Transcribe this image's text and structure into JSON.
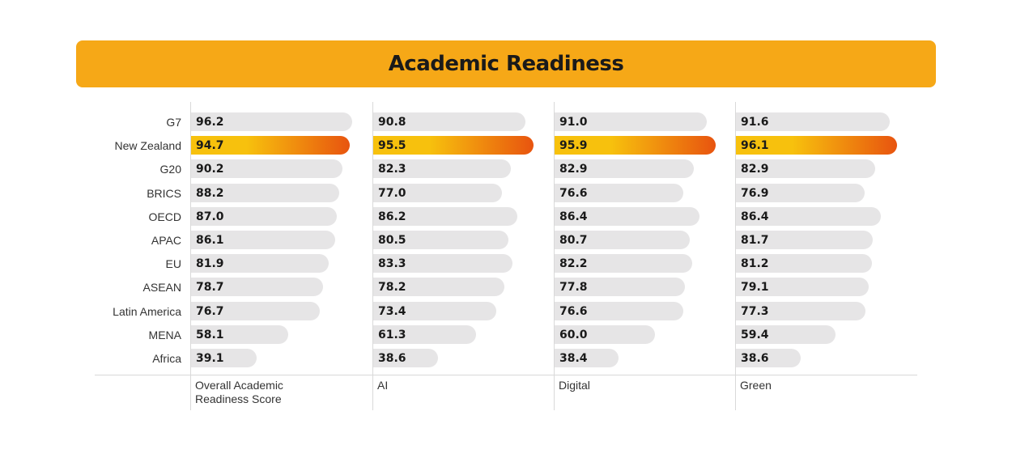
{
  "header": {
    "title": "Academic Readiness"
  },
  "colors": {
    "banner": "#F6A817",
    "bar": "#E6E5E6",
    "highlight_start": "#F7C10D",
    "highlight_end": "#E8540F"
  },
  "chart_data": {
    "type": "bar",
    "orientation": "horizontal",
    "title": "Academic Readiness",
    "categories": [
      "G7",
      "New Zealand",
      "G20",
      "BRICS",
      "OECD",
      "APAC",
      "EU",
      "ASEAN",
      "Latin America",
      "MENA",
      "Africa"
    ],
    "highlight_category": "New Zealand",
    "xlim": [
      0,
      100
    ],
    "series": [
      {
        "name": "Overall Academic Readiness Score",
        "values": [
          96.2,
          94.7,
          90.2,
          88.2,
          87.0,
          86.1,
          81.9,
          78.7,
          76.7,
          58.1,
          39.1
        ]
      },
      {
        "name": "AI",
        "values": [
          90.8,
          95.5,
          82.3,
          77.0,
          86.2,
          80.5,
          83.3,
          78.2,
          73.4,
          61.3,
          38.6
        ]
      },
      {
        "name": "Digital",
        "values": [
          91.0,
          95.9,
          82.9,
          76.6,
          86.4,
          80.7,
          82.2,
          77.8,
          76.6,
          60.0,
          38.4
        ]
      },
      {
        "name": "Green",
        "values": [
          91.6,
          96.1,
          82.9,
          76.9,
          86.4,
          81.7,
          81.2,
          79.1,
          77.3,
          59.4,
          38.6
        ]
      }
    ]
  }
}
